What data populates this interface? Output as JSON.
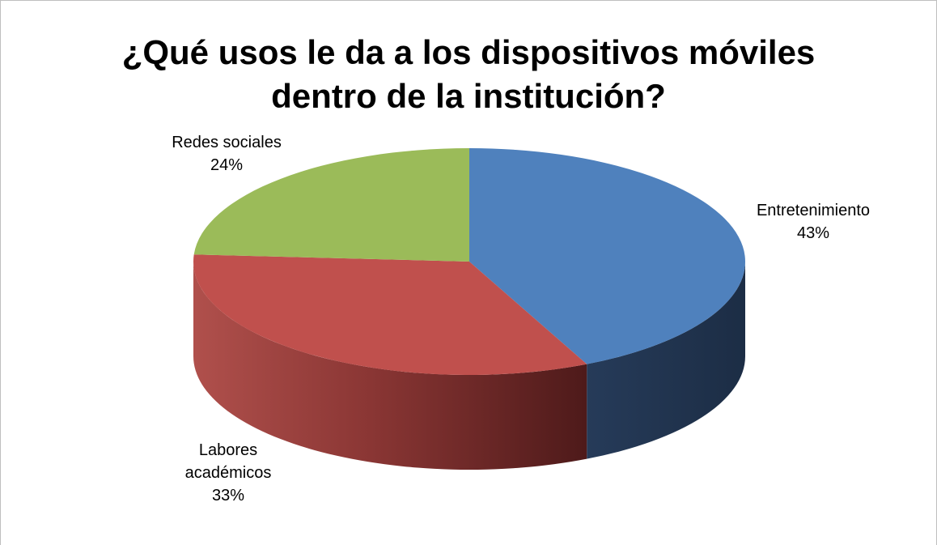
{
  "chart_data": {
    "type": "pie",
    "title": "¿Qué usos le da a los dispositivos móviles dentro de la institución?",
    "title_lines": [
      "¿Qué usos le da a los dispositivos móviles",
      "dentro de la institución?"
    ],
    "style": "3d-exploded-none",
    "slices": [
      {
        "label": "Entretenimiento",
        "label_lines": [
          "Entretenimiento"
        ],
        "value": 43,
        "value_text": "43%",
        "color": "#4F81BD"
      },
      {
        "label": "Labores académicos",
        "label_lines": [
          "Labores",
          "académicos"
        ],
        "value": 33,
        "value_text": "33%",
        "color": "#C0504D"
      },
      {
        "label": "Redes sociales",
        "label_lines": [
          "Redes sociales"
        ],
        "value": 24,
        "value_text": "24%",
        "color": "#9BBB59"
      }
    ],
    "legend": "none"
  }
}
